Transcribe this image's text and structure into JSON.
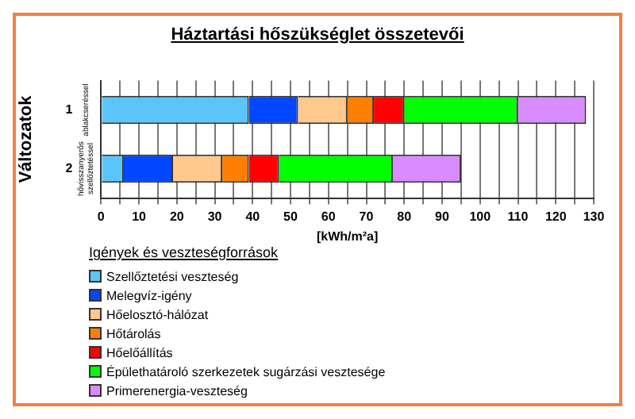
{
  "chart_data": {
    "type": "bar",
    "orientation": "horizontal",
    "stacked": true,
    "title": "Háztartási hőszükséglet összetevői",
    "xlabel": "[kWh/m²a]",
    "ylabel": "Változatok",
    "legend_title": "Igények és veszteségforrások",
    "legend": "bottom left",
    "grid": "x",
    "categories": [
      "1",
      "2"
    ],
    "annotations": [
      "ablakcseréssel",
      "hővisszanyerős szellőztetéssel"
    ],
    "xlim": [
      0,
      130
    ],
    "xticks": [
      0,
      {
        "value": 5,
        "label": null
      },
      10,
      {
        "value": 15,
        "label": null
      },
      20,
      {
        "value": 25,
        "label": null
      },
      30,
      {
        "value": 35,
        "label": null
      },
      40,
      {
        "value": 45,
        "label": null
      },
      50,
      {
        "value": 55,
        "label": null
      },
      60,
      {
        "value": 65,
        "label": null
      },
      70,
      {
        "value": 75,
        "label": null
      },
      80,
      {
        "value": 85,
        "label": null
      },
      90,
      {
        "value": 95,
        "label": null
      },
      100,
      {
        "value": 105,
        "label": null
      },
      110,
      {
        "value": 115,
        "label": null
      },
      120,
      {
        "value": 125,
        "label": null
      },
      130
    ],
    "series": [
      {
        "name": "Szellőztetési veszteség",
        "color": "#5bc5fb",
        "values": [
          39,
          6
        ]
      },
      {
        "name": "Melegvíz-igény",
        "color": "#0047ff",
        "values": [
          13,
          13
        ]
      },
      {
        "name": "Hőelosztó-hálózat",
        "color": "#ffc88c",
        "values": [
          13,
          13
        ]
      },
      {
        "name": "Hőtárolás",
        "color": "#ff8000",
        "values": [
          7,
          7
        ]
      },
      {
        "name": "Hőelőállítás",
        "color": "#ff0000",
        "values": [
          8,
          8
        ]
      },
      {
        "name": "Épülethatároló szerkezetek sugárzási vesztesége",
        "color": "#00ff00",
        "values": [
          30,
          30
        ]
      },
      {
        "name": "Primerenergia-veszteség",
        "color": "#d88cff",
        "values": [
          18,
          18
        ]
      }
    ]
  }
}
